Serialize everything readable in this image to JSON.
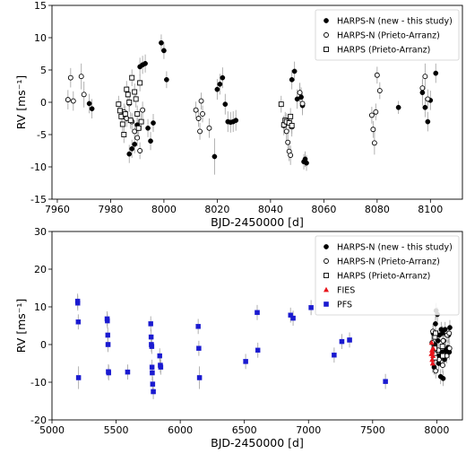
{
  "chart_data": [
    {
      "type": "scatter",
      "xlabel": "BJD-2450000 [d]",
      "ylabel": "RV [ms⁻¹]",
      "xlim": [
        7958,
        8112
      ],
      "ylim": [
        -15,
        15
      ],
      "xticks": [
        7960,
        7980,
        8000,
        8020,
        8040,
        8060,
        8080,
        8100
      ],
      "yticks": [
        -15,
        -10,
        -5,
        0,
        5,
        10,
        15
      ],
      "legend_position": "top-right",
      "series": [
        {
          "name": "HARPS-N (new - this study)",
          "marker": "filled-circle",
          "color": "#000000",
          "points": [
            [
              7972,
              -0.2,
              1.5
            ],
            [
              7973,
              -1.0,
              1.5
            ],
            [
              7987,
              -8.0,
              1.4
            ],
            [
              7988,
              -7.2,
              1.4
            ],
            [
              7989,
              -6.5,
              1.4
            ],
            [
              7990,
              -3.5,
              1.4
            ],
            [
              7991,
              5.5,
              1.4
            ],
            [
              7992,
              5.8,
              1.4
            ],
            [
              7993,
              6.0,
              1.4
            ],
            [
              7994,
              -4.0,
              1.4
            ],
            [
              7995,
              -6.0,
              1.4
            ],
            [
              7996,
              -3.2,
              1.4
            ],
            [
              7999,
              9.2,
              1.3
            ],
            [
              8000,
              8.0,
              1.3
            ],
            [
              8001,
              3.5,
              1.3
            ],
            [
              8019,
              -8.4,
              2.8
            ],
            [
              8020,
              2.0,
              1.6
            ],
            [
              8021,
              2.8,
              1.6
            ],
            [
              8022,
              3.8,
              1.6
            ],
            [
              8023,
              -0.3,
              1.6
            ],
            [
              8024,
              -3.0,
              1.6
            ],
            [
              8025,
              -3.1,
              1.6
            ],
            [
              8026,
              -3.0,
              1.6
            ],
            [
              8027,
              -2.8,
              1.6
            ],
            [
              8048,
              3.5,
              1.5
            ],
            [
              8049,
              4.8,
              1.5
            ],
            [
              8050,
              0.5,
              1.5
            ],
            [
              8051,
              1.5,
              1.5
            ],
            [
              8051.5,
              0.8,
              1.5
            ],
            [
              8052,
              -0.5,
              1.5
            ],
            [
              8052.5,
              -9.2,
              1.2
            ],
            [
              8053,
              -8.8,
              1.2
            ],
            [
              8053.5,
              -9.4,
              1.2
            ],
            [
              8088,
              -0.8,
              1.0
            ],
            [
              8097,
              1.5,
              2.0
            ],
            [
              8098,
              -0.8,
              1.5
            ],
            [
              8099,
              -3.0,
              1.5
            ],
            [
              8100,
              0.3,
              1.5
            ],
            [
              8102,
              4.5,
              1.5
            ]
          ]
        },
        {
          "name": "HARPS-N (Prieto-Arranz)",
          "marker": "open-circle",
          "color": "#000000",
          "points": [
            [
              7964,
              0.4,
              1.5
            ],
            [
              7965,
              3.8,
              1.5
            ],
            [
              7966,
              0.2,
              1.5
            ],
            [
              7969,
              4.0,
              2.0
            ],
            [
              7970,
              1.2,
              2.0
            ],
            [
              7985,
              -1.5,
              1.3
            ],
            [
              7986,
              -2.5,
              1.3
            ],
            [
              7987,
              -0.2,
              1.3
            ],
            [
              7988,
              -3.0,
              1.3
            ],
            [
              7989,
              -4.5,
              1.3
            ],
            [
              7990,
              -5.5,
              1.3
            ],
            [
              7991,
              -7.5,
              1.3
            ],
            [
              7992,
              -1.2,
              1.3
            ],
            [
              8012,
              -1.2,
              1.3
            ],
            [
              8013,
              -2.5,
              1.3
            ],
            [
              8013.5,
              -4.5,
              1.3
            ],
            [
              8014,
              0.2,
              1.3
            ],
            [
              8014.5,
              -1.8,
              1.3
            ],
            [
              8017,
              -4.0,
              1.5
            ],
            [
              8045,
              -3.6,
              1.5
            ],
            [
              8046,
              -4.5,
              1.5
            ],
            [
              8046.5,
              -6.2,
              1.5
            ],
            [
              8047,
              -7.6,
              1.5
            ],
            [
              8047.5,
              -8.2,
              1.5
            ],
            [
              8048,
              -3.8,
              1.5
            ],
            [
              8051,
              1.5,
              1.5
            ],
            [
              8052,
              -0.2,
              1.5
            ],
            [
              8078,
              -2.0,
              1.3
            ],
            [
              8078.5,
              -4.2,
              1.3
            ],
            [
              8079,
              -6.3,
              1.8
            ],
            [
              8079.5,
              -1.5,
              1.3
            ],
            [
              8080,
              4.2,
              1.3
            ],
            [
              8081,
              1.8,
              1.3
            ],
            [
              8097,
              2.2,
              1.5
            ],
            [
              8098,
              4.0,
              2.0
            ],
            [
              8099,
              0.5,
              1.5
            ]
          ]
        },
        {
          "name": "HARPS (Prieto-Arranz)",
          "marker": "open-square",
          "color": "#000000",
          "points": [
            [
              7983,
              -0.3,
              1.3
            ],
            [
              7983.5,
              -1.3,
              1.3
            ],
            [
              7984,
              -2.2,
              1.3
            ],
            [
              7984.5,
              -3.4,
              1.3
            ],
            [
              7985,
              -5.0,
              1.3
            ],
            [
              7985.5,
              -1.8,
              1.3
            ],
            [
              7986,
              2.0,
              1.3
            ],
            [
              7986.5,
              1.2,
              1.3
            ],
            [
              7987,
              0.0,
              1.3
            ],
            [
              7987.5,
              -2.8,
              1.3
            ],
            [
              7988,
              3.8,
              1.3
            ],
            [
              7989,
              1.6,
              1.3
            ],
            [
              7989.5,
              0.5,
              1.3
            ],
            [
              7990,
              -1.8,
              1.3
            ],
            [
              7990.5,
              -4.0,
              1.3
            ],
            [
              7991,
              3.0,
              1.3
            ],
            [
              7991.5,
              -3.0,
              1.3
            ],
            [
              8044,
              -0.3,
              1.3
            ],
            [
              8045,
              -3.5,
              1.3
            ],
            [
              8045.5,
              -2.8,
              1.3
            ],
            [
              8046,
              -3.0,
              1.3
            ],
            [
              8047,
              -3.2,
              1.3
            ],
            [
              8047.5,
              -2.2,
              1.3
            ],
            [
              8048,
              -3.6,
              1.3
            ]
          ]
        }
      ]
    },
    {
      "type": "scatter",
      "xlabel": "BJD-2450000 [d]",
      "ylabel": "RV [ms⁻¹]",
      "xlim": [
        5000,
        8200
      ],
      "ylim": [
        -20,
        30
      ],
      "xticks": [
        5000,
        5500,
        6000,
        6500,
        7000,
        7500,
        8000
      ],
      "yticks": [
        -20,
        -10,
        0,
        10,
        20,
        30
      ],
      "legend_position": "top-right",
      "series": [
        {
          "name": "HARPS-N (new - this study)",
          "marker": "filled-circle",
          "color": "#000000",
          "points": [
            [
              7972,
              3.0,
              2.0
            ],
            [
              7980,
              -6.0,
              2.0
            ],
            [
              7990,
              5.5,
              2.0
            ],
            [
              7995,
              9.0,
              2.0
            ],
            [
              8000,
              -3.0,
              2.0
            ],
            [
              8005,
              8.0,
              2.0
            ],
            [
              8010,
              1.0,
              2.0
            ],
            [
              8015,
              -5.0,
              2.0
            ],
            [
              8020,
              2.5,
              2.0
            ],
            [
              8025,
              -3.0,
              2.0
            ],
            [
              8030,
              -8.5,
              2.0
            ],
            [
              8035,
              4.0,
              2.0
            ],
            [
              8040,
              -2.0,
              2.0
            ],
            [
              8045,
              3.0,
              2.0
            ],
            [
              8050,
              -9.0,
              2.0
            ],
            [
              8055,
              1.0,
              2.0
            ],
            [
              8060,
              -4.0,
              2.0
            ],
            [
              8065,
              4.0,
              2.0
            ],
            [
              8070,
              -1.5,
              2.0
            ],
            [
              8080,
              -2.0,
              2.0
            ],
            [
              8088,
              -0.8,
              2.0
            ],
            [
              8092,
              2.5,
              2.0
            ],
            [
              8098,
              -2.0,
              2.0
            ],
            [
              8102,
              4.5,
              2.0
            ],
            [
              7985,
              0.0,
              2.0
            ]
          ]
        },
        {
          "name": "HARPS-N (Prieto-Arranz)",
          "marker": "open-circle",
          "color": "#000000",
          "points": [
            [
              7964,
              0.5,
              2.0
            ],
            [
              7970,
              3.5,
              2.0
            ],
            [
              7986,
              -2.5,
              2.0
            ],
            [
              7992,
              -7.0,
              2.0
            ],
            [
              8013,
              -1.5,
              2.0
            ],
            [
              8018,
              -4.0,
              2.0
            ],
            [
              8046,
              -5.5,
              2.0
            ],
            [
              8050,
              1.0,
              2.0
            ],
            [
              8078,
              -3.0,
              2.0
            ],
            [
              8081,
              2.5,
              2.0
            ],
            [
              8097,
              3.0,
              2.0
            ],
            [
              8100,
              -1.0,
              2.0
            ]
          ]
        },
        {
          "name": "HARPS (Prieto-Arranz)",
          "marker": "open-square",
          "color": "#000000",
          "points": [
            [
              7984,
              -1.0,
              2.0
            ],
            [
              7986,
              2.0,
              2.0
            ],
            [
              7988,
              -3.5,
              2.0
            ],
            [
              7991,
              3.0,
              2.0
            ],
            [
              8044,
              -0.5,
              2.0
            ],
            [
              8047,
              -3.0,
              2.0
            ]
          ]
        },
        {
          "name": "FIES",
          "marker": "triangle",
          "color": "#e8141b",
          "points": [
            [
              7958,
              -2.5,
              2.5
            ],
            [
              7960,
              0.5,
              2.5
            ],
            [
              7962,
              -1.5,
              2.5
            ],
            [
              7964,
              -4.0,
              2.5
            ],
            [
              7966,
              -2.0,
              2.5
            ],
            [
              7968,
              -5.0,
              2.5
            ],
            [
              7970,
              -3.0,
              2.5
            ],
            [
              7972,
              -1.0,
              2.5
            ]
          ]
        },
        {
          "name": "PFS",
          "marker": "filled-square",
          "color": "#1a1ad0",
          "points": [
            [
              5200,
              11.5,
              2.0
            ],
            [
              5201,
              11.0,
              2.0
            ],
            [
              5205,
              6.0,
              2.0
            ],
            [
              5207,
              -8.8,
              3.0
            ],
            [
              5430,
              6.8,
              2.0
            ],
            [
              5432,
              6.3,
              2.0
            ],
            [
              5435,
              2.5,
              2.0
            ],
            [
              5437,
              0.0,
              2.0
            ],
            [
              5440,
              -7.2,
              2.0
            ],
            [
              5442,
              -7.5,
              2.0
            ],
            [
              5590,
              -7.3,
              2.0
            ],
            [
              5770,
              5.5,
              2.0
            ],
            [
              5773,
              2.0,
              2.0
            ],
            [
              5775,
              0.0,
              2.0
            ],
            [
              5778,
              -0.5,
              2.0
            ],
            [
              5780,
              -6.0,
              2.0
            ],
            [
              5782,
              -7.5,
              2.0
            ],
            [
              5785,
              -10.5,
              2.0
            ],
            [
              5790,
              -12.5,
              2.0
            ],
            [
              5840,
              -3.0,
              2.0
            ],
            [
              5845,
              -5.5,
              2.0
            ],
            [
              5848,
              -6.0,
              2.0
            ],
            [
              6140,
              4.8,
              2.0
            ],
            [
              6145,
              -1.0,
              2.0
            ],
            [
              6150,
              -8.8,
              3.0
            ],
            [
              6510,
              -4.5,
              2.0
            ],
            [
              6600,
              8.5,
              2.0
            ],
            [
              6605,
              -1.5,
              2.0
            ],
            [
              6860,
              7.8,
              2.0
            ],
            [
              6880,
              7.0,
              2.0
            ],
            [
              7020,
              9.8,
              2.0
            ],
            [
              7200,
              -2.8,
              2.0
            ],
            [
              7260,
              0.8,
              2.0
            ],
            [
              7320,
              1.2,
              2.0
            ],
            [
              7600,
              -9.8,
              2.0
            ]
          ]
        }
      ]
    }
  ]
}
